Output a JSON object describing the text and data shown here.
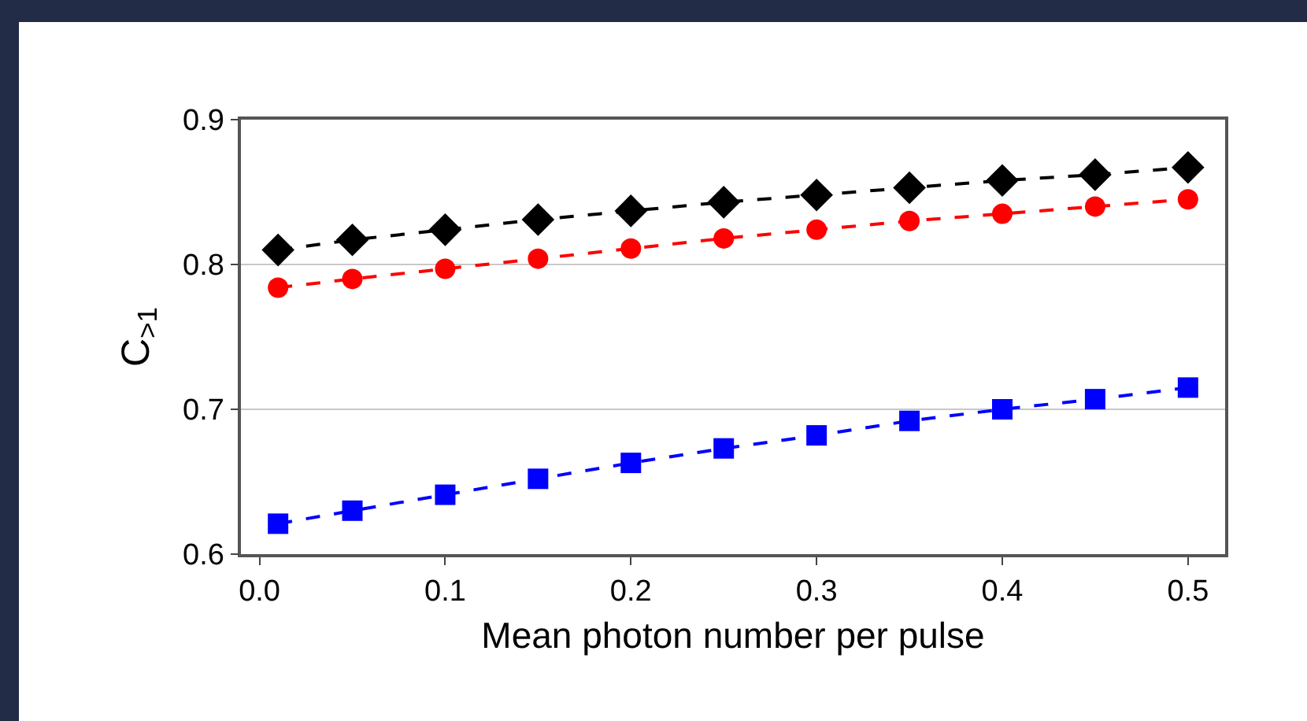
{
  "chart_data": {
    "type": "line",
    "xlabel": "Mean photon number per pulse",
    "ylabel": "C$_{>1}$",
    "x": [
      0.01,
      0.05,
      0.1,
      0.15,
      0.2,
      0.25,
      0.3,
      0.35,
      0.4,
      0.45,
      0.5
    ],
    "series": [
      {
        "color": "#000000",
        "marker": "diamond",
        "values": [
          0.81,
          0.817,
          0.824,
          0.831,
          0.837,
          0.843,
          0.848,
          0.853,
          0.858,
          0.862,
          0.867
        ]
      },
      {
        "color": "#ff0000",
        "marker": "circle",
        "values": [
          0.784,
          0.79,
          0.797,
          0.804,
          0.811,
          0.818,
          0.824,
          0.83,
          0.835,
          0.84,
          0.845
        ]
      },
      {
        "color": "#0000ff",
        "marker": "square",
        "values": [
          0.621,
          0.63,
          0.641,
          0.652,
          0.663,
          0.673,
          0.682,
          0.692,
          0.7,
          0.707,
          0.715
        ]
      }
    ],
    "xlim": [
      -0.01,
      0.52
    ],
    "xticks": [
      {
        "value": 0,
        "label": "0.0"
      },
      0.1,
      0.2,
      0.3,
      0.4,
      0.5
    ],
    "ylim": [
      0.6,
      0.9
    ],
    "yticks": [
      0.6,
      0.7,
      0.8,
      0.9
    ],
    "grid": "y",
    "line_style": "dashed"
  }
}
